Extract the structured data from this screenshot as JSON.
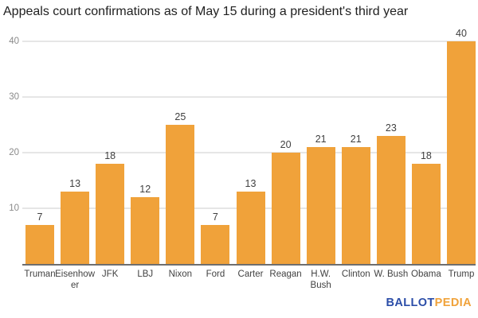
{
  "title": "Appeals court confirmations as of May 15 during a president's third year",
  "chart_data": {
    "type": "bar",
    "title": "Appeals court confirmations as of May 15 during a president's third year",
    "categories": [
      "Truman",
      "Eisenhower",
      "JFK",
      "LBJ",
      "Nixon",
      "Ford",
      "Carter",
      "Reagan",
      "H.W. Bush",
      "Clinton",
      "W. Bush",
      "Obama",
      "Trump"
    ],
    "values": [
      7,
      13,
      18,
      12,
      25,
      7,
      13,
      20,
      21,
      21,
      23,
      18,
      40
    ],
    "xlabel": "",
    "ylabel": "",
    "ylim": [
      0,
      40
    ],
    "yticks": [
      10,
      20,
      30,
      40
    ],
    "grid": true,
    "legend": "none",
    "value_labels_shown": true
  },
  "colors": {
    "bar": "#f0a23a",
    "gridline": "#e6e6e6",
    "axis_line": "#6e6e6e",
    "tick_label": "#8a8a8a",
    "value_label": "#404040",
    "category_label": "#424242",
    "title": "#212121",
    "logo_blue": "#2b4da8",
    "logo_orange": "#f0a23a"
  },
  "branding": {
    "logo_part1": "BALLOT",
    "logo_part2": "PEDIA"
  }
}
